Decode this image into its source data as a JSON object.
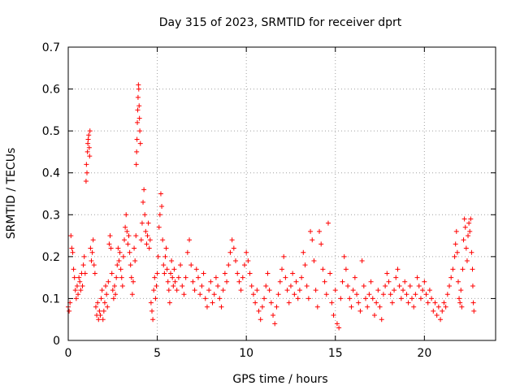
{
  "chart_data": {
    "type": "scatter",
    "title": "Day 315 of 2023, SRMTID for receiver dprt",
    "xlabel": "GPS time / hours",
    "ylabel": "SRMTID / TECUs",
    "xlim": [
      0,
      24
    ],
    "ylim": [
      0,
      0.7
    ],
    "xticks": [
      0,
      5,
      10,
      15,
      20
    ],
    "yticks": [
      0,
      0.1,
      0.2,
      0.3,
      0.4,
      0.5,
      0.6,
      0.7
    ],
    "x_tick_labels": [
      "0",
      "5",
      "10",
      "15",
      "20"
    ],
    "y_tick_labels": [
      "0",
      "0.1",
      "0.2",
      "0.3",
      "0.4",
      "0.5",
      "0.6",
      "0.7"
    ],
    "grid": true,
    "marker": "+",
    "color": "#ff0000",
    "series": [
      {
        "name": "SRMTID",
        "points": [
          [
            0.0,
            0.08
          ],
          [
            0.05,
            0.07
          ],
          [
            0.1,
            0.09
          ],
          [
            0.15,
            0.25
          ],
          [
            0.2,
            0.22
          ],
          [
            0.25,
            0.21
          ],
          [
            0.3,
            0.17
          ],
          [
            0.35,
            0.15
          ],
          [
            0.4,
            0.12
          ],
          [
            0.45,
            0.1
          ],
          [
            0.5,
            0.13
          ],
          [
            0.55,
            0.11
          ],
          [
            0.6,
            0.15
          ],
          [
            0.65,
            0.14
          ],
          [
            0.7,
            0.12
          ],
          [
            0.75,
            0.16
          ],
          [
            0.8,
            0.13
          ],
          [
            0.85,
            0.18
          ],
          [
            0.9,
            0.2
          ],
          [
            0.95,
            0.16
          ],
          [
            1.0,
            0.38
          ],
          [
            1.02,
            0.42
          ],
          [
            1.05,
            0.4
          ],
          [
            1.08,
            0.45
          ],
          [
            1.1,
            0.47
          ],
          [
            1.12,
            0.48
          ],
          [
            1.15,
            0.49
          ],
          [
            1.18,
            0.46
          ],
          [
            1.2,
            0.44
          ],
          [
            1.22,
            0.5
          ],
          [
            1.25,
            0.22
          ],
          [
            1.3,
            0.19
          ],
          [
            1.35,
            0.21
          ],
          [
            1.4,
            0.24
          ],
          [
            1.45,
            0.18
          ],
          [
            1.5,
            0.16
          ],
          [
            1.55,
            0.08
          ],
          [
            1.6,
            0.06
          ],
          [
            1.65,
            0.09
          ],
          [
            1.7,
            0.05
          ],
          [
            1.75,
            0.07
          ],
          [
            1.8,
            0.06
          ],
          [
            1.85,
            0.1
          ],
          [
            1.9,
            0.12
          ],
          [
            1.95,
            0.05
          ],
          [
            2.0,
            0.07
          ],
          [
            2.05,
            0.09
          ],
          [
            2.1,
            0.13
          ],
          [
            2.15,
            0.11
          ],
          [
            2.2,
            0.08
          ],
          [
            2.25,
            0.14
          ],
          [
            2.3,
            0.23
          ],
          [
            2.35,
            0.25
          ],
          [
            2.4,
            0.22
          ],
          [
            2.45,
            0.16
          ],
          [
            2.5,
            0.12
          ],
          [
            2.55,
            0.1
          ],
          [
            2.6,
            0.13
          ],
          [
            2.65,
            0.11
          ],
          [
            2.7,
            0.15
          ],
          [
            2.75,
            0.18
          ],
          [
            2.8,
            0.22
          ],
          [
            2.85,
            0.19
          ],
          [
            2.9,
            0.21
          ],
          [
            2.95,
            0.17
          ],
          [
            3.0,
            0.15
          ],
          [
            3.05,
            0.13
          ],
          [
            3.1,
            0.2
          ],
          [
            3.15,
            0.24
          ],
          [
            3.2,
            0.27
          ],
          [
            3.25,
            0.3
          ],
          [
            3.3,
            0.26
          ],
          [
            3.35,
            0.23
          ],
          [
            3.4,
            0.25
          ],
          [
            3.45,
            0.21
          ],
          [
            3.5,
            0.18
          ],
          [
            3.55,
            0.15
          ],
          [
            3.6,
            0.11
          ],
          [
            3.65,
            0.14
          ],
          [
            3.7,
            0.22
          ],
          [
            3.75,
            0.19
          ],
          [
            3.8,
            0.25
          ],
          [
            3.82,
            0.42
          ],
          [
            3.84,
            0.45
          ],
          [
            3.86,
            0.48
          ],
          [
            3.88,
            0.52
          ],
          [
            3.9,
            0.55
          ],
          [
            3.92,
            0.58
          ],
          [
            3.94,
            0.61
          ],
          [
            3.96,
            0.6
          ],
          [
            3.98,
            0.56
          ],
          [
            4.0,
            0.53
          ],
          [
            4.02,
            0.5
          ],
          [
            4.05,
            0.47
          ],
          [
            4.1,
            0.24
          ],
          [
            4.15,
            0.28
          ],
          [
            4.2,
            0.33
          ],
          [
            4.25,
            0.36
          ],
          [
            4.3,
            0.3
          ],
          [
            4.35,
            0.26
          ],
          [
            4.4,
            0.23
          ],
          [
            4.45,
            0.25
          ],
          [
            4.5,
            0.28
          ],
          [
            4.55,
            0.22
          ],
          [
            4.6,
            0.24
          ],
          [
            4.65,
            0.09
          ],
          [
            4.7,
            0.07
          ],
          [
            4.75,
            0.05
          ],
          [
            4.8,
            0.12
          ],
          [
            4.85,
            0.15
          ],
          [
            4.9,
            0.1
          ],
          [
            4.95,
            0.13
          ],
          [
            5.0,
            0.16
          ],
          [
            5.05,
            0.2
          ],
          [
            5.1,
            0.27
          ],
          [
            5.15,
            0.3
          ],
          [
            5.2,
            0.35
          ],
          [
            5.25,
            0.32
          ],
          [
            5.3,
            0.24
          ],
          [
            5.35,
            0.18
          ],
          [
            5.4,
            0.16
          ],
          [
            5.45,
            0.2
          ],
          [
            5.5,
            0.22
          ],
          [
            5.55,
            0.17
          ],
          [
            5.6,
            0.14
          ],
          [
            5.65,
            0.12
          ],
          [
            5.7,
            0.09
          ],
          [
            5.75,
            0.16
          ],
          [
            5.8,
            0.19
          ],
          [
            5.85,
            0.15
          ],
          [
            5.9,
            0.13
          ],
          [
            5.95,
            0.17
          ],
          [
            6.0,
            0.14
          ],
          [
            6.1,
            0.12
          ],
          [
            6.2,
            0.15
          ],
          [
            6.3,
            0.18
          ],
          [
            6.4,
            0.13
          ],
          [
            6.5,
            0.11
          ],
          [
            6.6,
            0.15
          ],
          [
            6.7,
            0.21
          ],
          [
            6.8,
            0.24
          ],
          [
            6.9,
            0.18
          ],
          [
            7.0,
            0.14
          ],
          [
            7.1,
            0.12
          ],
          [
            7.2,
            0.17
          ],
          [
            7.3,
            0.15
          ],
          [
            7.4,
            0.11
          ],
          [
            7.5,
            0.13
          ],
          [
            7.6,
            0.16
          ],
          [
            7.7,
            0.1
          ],
          [
            7.8,
            0.08
          ],
          [
            7.9,
            0.12
          ],
          [
            8.0,
            0.14
          ],
          [
            8.1,
            0.09
          ],
          [
            8.2,
            0.11
          ],
          [
            8.3,
            0.15
          ],
          [
            8.4,
            0.13
          ],
          [
            8.5,
            0.1
          ],
          [
            8.6,
            0.08
          ],
          [
            8.7,
            0.12
          ],
          [
            8.8,
            0.16
          ],
          [
            8.9,
            0.14
          ],
          [
            9.0,
            0.18
          ],
          [
            9.1,
            0.21
          ],
          [
            9.2,
            0.24
          ],
          [
            9.3,
            0.22
          ],
          [
            9.4,
            0.19
          ],
          [
            9.5,
            0.16
          ],
          [
            9.6,
            0.14
          ],
          [
            9.7,
            0.12
          ],
          [
            9.8,
            0.15
          ],
          [
            9.9,
            0.18
          ],
          [
            10.0,
            0.21
          ],
          [
            10.1,
            0.19
          ],
          [
            10.2,
            0.16
          ],
          [
            10.3,
            0.13
          ],
          [
            10.4,
            0.11
          ],
          [
            10.5,
            0.09
          ],
          [
            10.6,
            0.12
          ],
          [
            10.7,
            0.07
          ],
          [
            10.8,
            0.05
          ],
          [
            10.9,
            0.08
          ],
          [
            11.0,
            0.1
          ],
          [
            11.1,
            0.13
          ],
          [
            11.2,
            0.16
          ],
          [
            11.3,
            0.12
          ],
          [
            11.4,
            0.09
          ],
          [
            11.5,
            0.06
          ],
          [
            11.6,
            0.04
          ],
          [
            11.7,
            0.08
          ],
          [
            11.8,
            0.11
          ],
          [
            11.9,
            0.14
          ],
          [
            12.0,
            0.17
          ],
          [
            12.1,
            0.2
          ],
          [
            12.2,
            0.15
          ],
          [
            12.3,
            0.12
          ],
          [
            12.4,
            0.09
          ],
          [
            12.5,
            0.13
          ],
          [
            12.6,
            0.16
          ],
          [
            12.7,
            0.11
          ],
          [
            12.8,
            0.14
          ],
          [
            12.9,
            0.1
          ],
          [
            13.0,
            0.12
          ],
          [
            13.1,
            0.15
          ],
          [
            13.2,
            0.21
          ],
          [
            13.3,
            0.18
          ],
          [
            13.4,
            0.13
          ],
          [
            13.5,
            0.1
          ],
          [
            13.6,
            0.26
          ],
          [
            13.7,
            0.24
          ],
          [
            13.8,
            0.19
          ],
          [
            13.9,
            0.12
          ],
          [
            14.0,
            0.08
          ],
          [
            14.1,
            0.26
          ],
          [
            14.2,
            0.23
          ],
          [
            14.3,
            0.17
          ],
          [
            14.4,
            0.14
          ],
          [
            14.5,
            0.11
          ],
          [
            14.6,
            0.28
          ],
          [
            14.7,
            0.16
          ],
          [
            14.8,
            0.09
          ],
          [
            14.9,
            0.06
          ],
          [
            15.0,
            0.12
          ],
          [
            15.1,
            0.04
          ],
          [
            15.2,
            0.03
          ],
          [
            15.3,
            0.1
          ],
          [
            15.4,
            0.14
          ],
          [
            15.5,
            0.2
          ],
          [
            15.6,
            0.17
          ],
          [
            15.7,
            0.13
          ],
          [
            15.8,
            0.1
          ],
          [
            15.9,
            0.08
          ],
          [
            16.0,
            0.12
          ],
          [
            16.1,
            0.15
          ],
          [
            16.2,
            0.11
          ],
          [
            16.3,
            0.09
          ],
          [
            16.4,
            0.07
          ],
          [
            16.5,
            0.19
          ],
          [
            16.6,
            0.13
          ],
          [
            16.7,
            0.1
          ],
          [
            16.8,
            0.08
          ],
          [
            16.9,
            0.11
          ],
          [
            17.0,
            0.14
          ],
          [
            17.1,
            0.1
          ],
          [
            17.2,
            0.06
          ],
          [
            17.3,
            0.09
          ],
          [
            17.4,
            0.12
          ],
          [
            17.5,
            0.08
          ],
          [
            17.6,
            0.05
          ],
          [
            17.7,
            0.11
          ],
          [
            17.8,
            0.13
          ],
          [
            17.9,
            0.16
          ],
          [
            18.0,
            0.14
          ],
          [
            18.1,
            0.11
          ],
          [
            18.2,
            0.09
          ],
          [
            18.3,
            0.12
          ],
          [
            18.4,
            0.15
          ],
          [
            18.5,
            0.17
          ],
          [
            18.6,
            0.13
          ],
          [
            18.7,
            0.1
          ],
          [
            18.8,
            0.12
          ],
          [
            18.9,
            0.14
          ],
          [
            19.0,
            0.11
          ],
          [
            19.1,
            0.09
          ],
          [
            19.2,
            0.13
          ],
          [
            19.3,
            0.1
          ],
          [
            19.4,
            0.08
          ],
          [
            19.5,
            0.11
          ],
          [
            19.6,
            0.15
          ],
          [
            19.7,
            0.13
          ],
          [
            19.8,
            0.1
          ],
          [
            19.9,
            0.12
          ],
          [
            20.0,
            0.14
          ],
          [
            20.1,
            0.11
          ],
          [
            20.2,
            0.09
          ],
          [
            20.3,
            0.12
          ],
          [
            20.4,
            0.1
          ],
          [
            20.5,
            0.07
          ],
          [
            20.6,
            0.09
          ],
          [
            20.7,
            0.06
          ],
          [
            20.8,
            0.08
          ],
          [
            20.9,
            0.05
          ],
          [
            21.0,
            0.07
          ],
          [
            21.1,
            0.09
          ],
          [
            21.2,
            0.08
          ],
          [
            21.3,
            0.11
          ],
          [
            21.4,
            0.13
          ],
          [
            21.5,
            0.15
          ],
          [
            21.6,
            0.17
          ],
          [
            21.7,
            0.2
          ],
          [
            21.75,
            0.23
          ],
          [
            21.8,
            0.26
          ],
          [
            21.85,
            0.21
          ],
          [
            21.9,
            0.14
          ],
          [
            21.95,
            0.1
          ],
          [
            22.0,
            0.09
          ],
          [
            22.05,
            0.12
          ],
          [
            22.1,
            0.08
          ],
          [
            22.15,
            0.17
          ],
          [
            22.2,
            0.24
          ],
          [
            22.25,
            0.29
          ],
          [
            22.3,
            0.27
          ],
          [
            22.35,
            0.22
          ],
          [
            22.4,
            0.19
          ],
          [
            22.45,
            0.25
          ],
          [
            22.5,
            0.28
          ],
          [
            22.55,
            0.26
          ],
          [
            22.6,
            0.29
          ],
          [
            22.65,
            0.21
          ],
          [
            22.7,
            0.17
          ],
          [
            22.72,
            0.13
          ],
          [
            22.75,
            0.09
          ],
          [
            22.78,
            0.07
          ]
        ]
      }
    ]
  }
}
